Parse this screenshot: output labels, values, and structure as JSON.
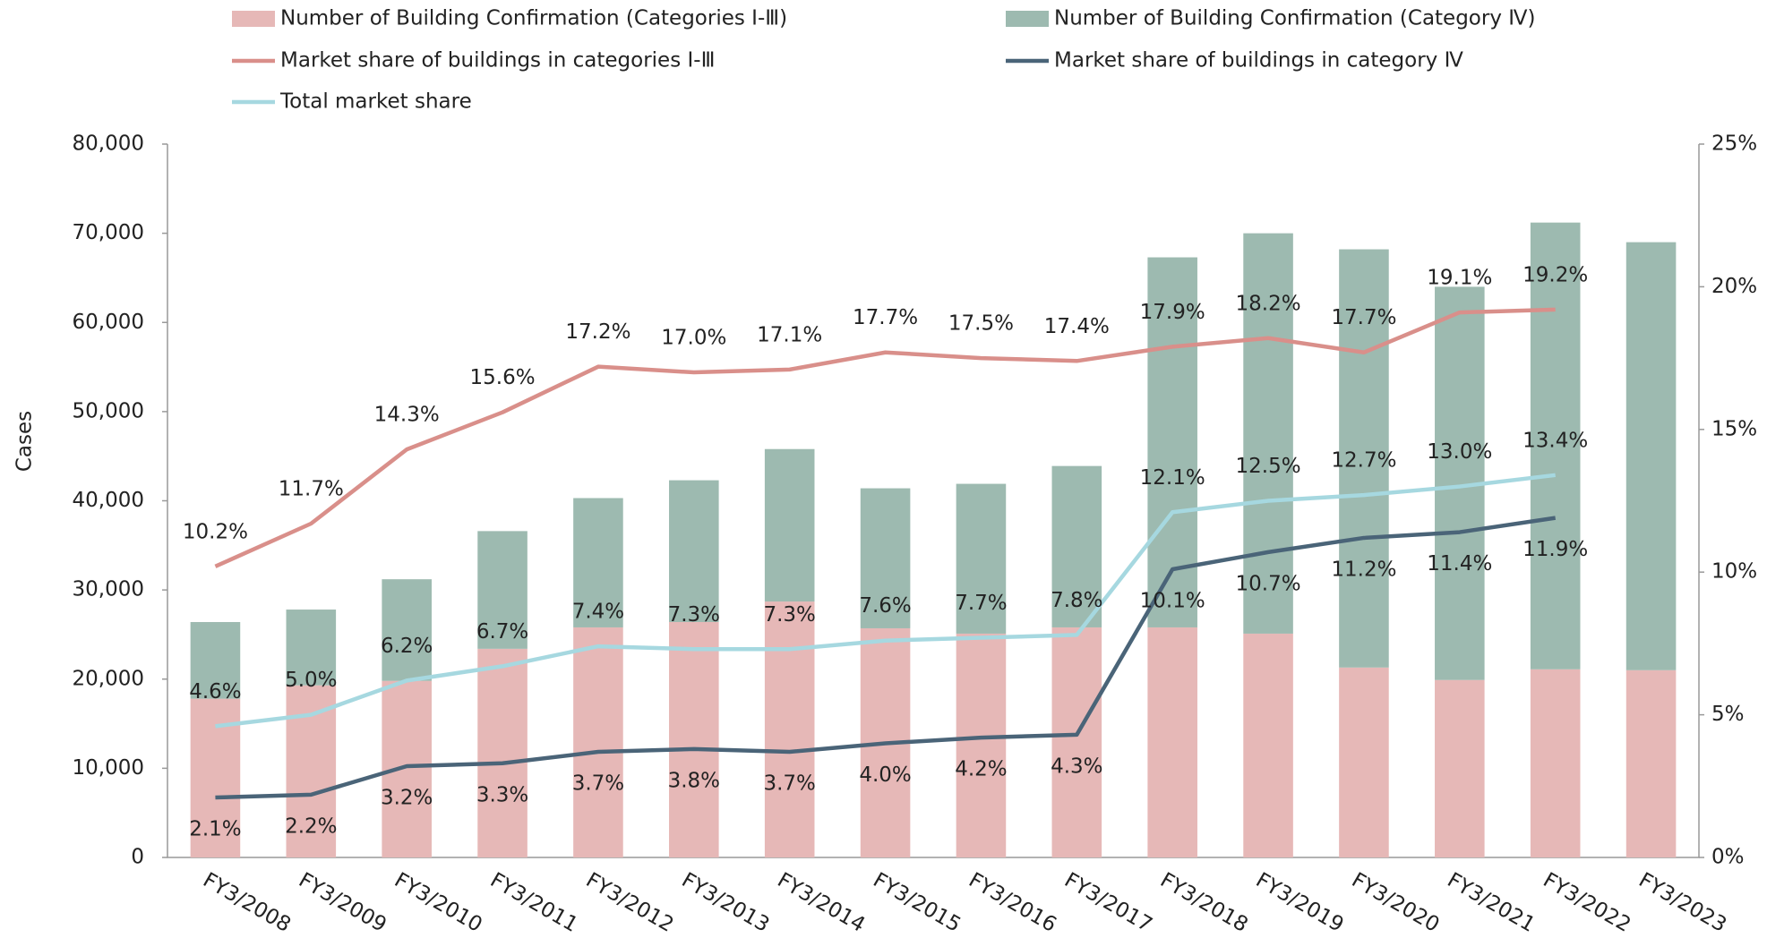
{
  "chart_data": {
    "type": "bar",
    "y_label": "Cases",
    "grid": false,
    "legend": "top",
    "categories": [
      "FY3/2008",
      "FY3/2009",
      "FY3/2010",
      "FY3/2011",
      "FY3/2012",
      "FY3/2013",
      "FY3/2014",
      "FY3/2015",
      "FY3/2016",
      "FY3/2017",
      "FY3/2018",
      "FY3/2019",
      "FY3/2020",
      "FY3/2021",
      "FY3/2022",
      "FY3/2023"
    ],
    "ylim": [
      0,
      80000
    ],
    "yticks": [
      0,
      {
        "value": 10000,
        "label": "10,000"
      },
      {
        "value": 20000,
        "label": "20,000"
      },
      {
        "value": 30000,
        "label": "30,000"
      },
      {
        "value": 40000,
        "label": "40,000"
      },
      {
        "value": 50000,
        "label": "50,000"
      },
      {
        "value": 60000,
        "label": "60,000"
      },
      {
        "value": 70000,
        "label": "70,000"
      },
      {
        "value": 80000,
        "label": "80,000"
      }
    ],
    "y2lim": [
      0,
      25
    ],
    "y2ticks": [
      {
        "value": 0,
        "label": "0%"
      },
      {
        "value": 5,
        "label": "5%"
      },
      {
        "value": 10,
        "label": "10%"
      },
      {
        "value": 15,
        "label": "15%"
      },
      {
        "value": 20,
        "label": "20%"
      },
      {
        "value": 25,
        "label": "25%"
      }
    ],
    "series": [
      {
        "name": "Number of Building Confirmation (Categories Ⅰ-Ⅲ)",
        "type": "bar",
        "color": "#e6b8b7",
        "values": [
          17800,
          19300,
          19800,
          23400,
          25800,
          26400,
          28700,
          25700,
          25100,
          25800,
          25800,
          25100,
          21300,
          19900,
          21100,
          21000
        ]
      },
      {
        "name": "Number of Building Confirmation (Category Ⅳ)",
        "type": "bar",
        "color": "#9dbab0",
        "values": [
          8600,
          8500,
          11400,
          13200,
          14500,
          15900,
          17100,
          15700,
          16800,
          18100,
          41500,
          44900,
          46900,
          44100,
          50100,
          48000
        ]
      },
      {
        "name": "Market share of buildings in categories Ⅰ-Ⅲ",
        "type": "line",
        "axis": "y2",
        "color": "#d98f8a",
        "label_pos": "above",
        "values": [
          10.2,
          11.7,
          14.3,
          15.6,
          17.2,
          17.0,
          17.1,
          17.7,
          17.5,
          17.4,
          17.9,
          18.2,
          17.7,
          19.1,
          19.2,
          null
        ],
        "value_labels": [
          "10.2%",
          "11.7%",
          "14.3%",
          "15.6%",
          "17.2%",
          "17.0%",
          "17.1%",
          "17.7%",
          "17.5%",
          "17.4%",
          "17.9%",
          "18.2%",
          "17.7%",
          "19.1%",
          "19.2%",
          null
        ]
      },
      {
        "name": "Market share of buildings in category Ⅳ",
        "type": "line",
        "axis": "y2",
        "color": "#4a6478",
        "label_pos": "below",
        "values": [
          2.1,
          2.2,
          3.2,
          3.3,
          3.7,
          3.8,
          3.7,
          4.0,
          4.2,
          4.3,
          10.1,
          10.7,
          11.2,
          11.4,
          11.9,
          null
        ],
        "value_labels": [
          "2.1%",
          "2.2%",
          "3.2%",
          "3.3%",
          "3.7%",
          "3.8%",
          "3.7%",
          "4.0%",
          "4.2%",
          "4.3%",
          "10.1%",
          "10.7%",
          "11.2%",
          "11.4%",
          "11.9%",
          null
        ]
      },
      {
        "name": "Total market share",
        "type": "line",
        "axis": "y2",
        "color": "#a6d8e0",
        "label_pos": "above",
        "values": [
          4.6,
          5.0,
          6.2,
          6.7,
          7.4,
          7.3,
          7.3,
          7.6,
          7.7,
          7.8,
          12.1,
          12.5,
          12.7,
          13.0,
          13.4,
          null
        ],
        "value_labels": [
          "4.6%",
          "5.0%",
          "6.2%",
          "6.7%",
          "7.4%",
          "7.3%",
          "7.3%",
          "7.6%",
          "7.7%",
          "7.8%",
          "12.1%",
          "12.5%",
          "12.7%",
          "13.0%",
          "13.4%",
          null
        ]
      }
    ]
  }
}
